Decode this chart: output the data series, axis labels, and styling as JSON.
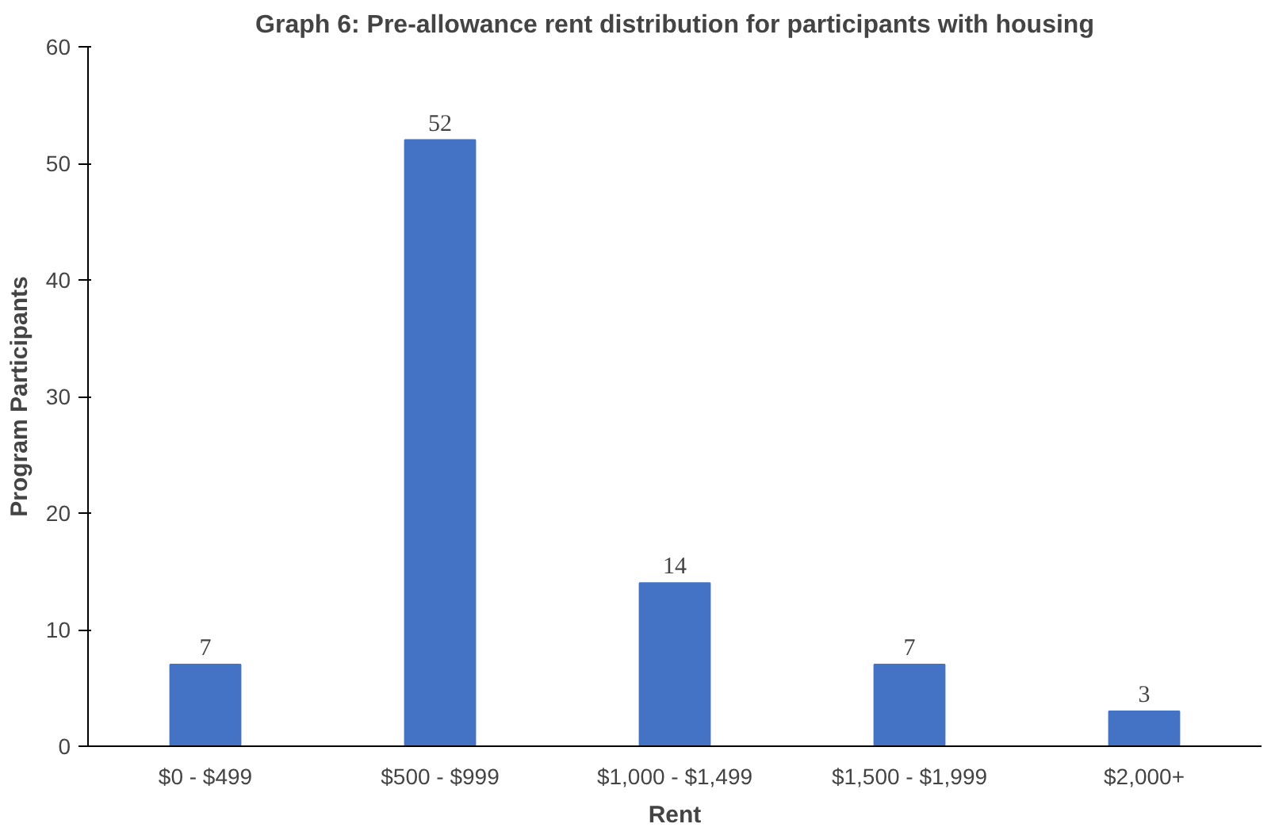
{
  "chart_data": {
    "type": "bar",
    "title": "Graph 6: Pre-allowance rent distribution for participants with housing",
    "xlabel": "Rent",
    "ylabel": "Program Participants",
    "categories": [
      "$0 - $499",
      "$500 - $999",
      "$1,000 - $1,499",
      "$1,500 - $1,999",
      "$2,000+"
    ],
    "values": [
      7,
      52,
      14,
      7,
      3
    ],
    "color": "#4472c4",
    "ylim": [
      0,
      60
    ],
    "yticks": [
      0,
      10,
      20,
      30,
      40,
      50,
      60
    ],
    "data_labels": true,
    "grid": false
  }
}
